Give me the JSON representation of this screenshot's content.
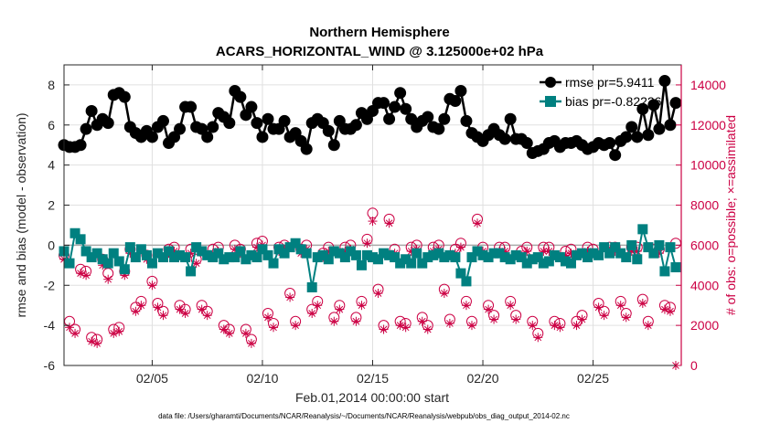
{
  "chart_data": {
    "type": "line",
    "title": "Northern Hemisphere",
    "subtitle": "ACARS_HORIZONTAL_WIND @ 3.125000e+02 hPa",
    "xlabel": "Feb.01,2014 00:00:00 start",
    "ylabel_left": "rmse and bias (model - observation)",
    "ylabel_right": "# of obs: o=possible; ×=assimilated",
    "footnote": "data file: /Users/gharamti/Documents/NCAR/Reanalysis/~/Documents/NCAR/Reanalysis/webpub/obs_diag_output_2014-02.nc",
    "xlim": [
      1.0,
      29.0
    ],
    "ylim_left": [
      -6,
      9
    ],
    "ylim_right": [
      0,
      15000
    ],
    "x_ticks": [
      5,
      10,
      15,
      20,
      25
    ],
    "x_tick_labels": [
      "02/05",
      "02/10",
      "02/15",
      "02/20",
      "02/25"
    ],
    "y_left_ticks": [
      -6,
      -4,
      -2,
      0,
      2,
      4,
      6,
      8
    ],
    "y_left_tick_labels": [
      "-6",
      "-4",
      "-2",
      "0",
      "2",
      "4",
      "6",
      "8"
    ],
    "y_right_ticks": [
      0,
      2000,
      4000,
      6000,
      8000,
      10000,
      12000,
      14000
    ],
    "y_right_tick_labels": [
      "0",
      "2000",
      "4000",
      "6000",
      "8000",
      "10000",
      "12000",
      "14000"
    ],
    "legend": {
      "position": "top-right",
      "entries": [
        "rmse pr=5.9411",
        "bias pr=-0.82226"
      ]
    },
    "colors": {
      "rmse": "#000000",
      "bias": "#008080",
      "obs": "#cc0044",
      "zero_line": "#aaaaaa",
      "grid": "#e0e0e0"
    },
    "series": [
      {
        "name": "rmse",
        "axis": "left",
        "marker": "circle",
        "x": [
          1.0,
          1.25,
          1.5,
          1.75,
          2.0,
          2.25,
          2.5,
          2.75,
          3.0,
          3.25,
          3.5,
          3.75,
          4.0,
          4.25,
          4.5,
          4.75,
          5.0,
          5.25,
          5.5,
          5.75,
          6.0,
          6.25,
          6.5,
          6.75,
          7.0,
          7.25,
          7.5,
          7.75,
          8.0,
          8.25,
          8.5,
          8.75,
          9.0,
          9.25,
          9.5,
          9.75,
          10.0,
          10.25,
          10.5,
          10.75,
          11.0,
          11.25,
          11.5,
          11.75,
          12.0,
          12.25,
          12.5,
          12.75,
          13.0,
          13.25,
          13.5,
          13.75,
          14.0,
          14.25,
          14.5,
          14.75,
          15.0,
          15.25,
          15.5,
          15.75,
          16.0,
          16.25,
          16.5,
          16.75,
          17.0,
          17.25,
          17.5,
          17.75,
          18.0,
          18.25,
          18.5,
          18.75,
          19.0,
          19.25,
          19.5,
          19.75,
          20.0,
          20.25,
          20.5,
          20.75,
          21.0,
          21.25,
          21.5,
          21.75,
          22.0,
          22.25,
          22.5,
          22.75,
          23.0,
          23.25,
          23.5,
          23.75,
          24.0,
          24.25,
          24.5,
          24.75,
          25.0,
          25.25,
          25.5,
          25.75,
          26.0,
          26.25,
          26.5,
          26.75,
          27.0,
          27.25,
          27.5,
          27.75,
          28.0,
          28.25,
          28.5,
          28.75
        ],
        "values": [
          5.0,
          4.9,
          4.9,
          5.0,
          5.8,
          6.7,
          6.0,
          6.3,
          6.1,
          7.5,
          7.6,
          7.4,
          5.9,
          5.6,
          5.4,
          5.7,
          5.4,
          5.9,
          6.2,
          5.1,
          5.4,
          5.8,
          6.9,
          6.9,
          5.9,
          5.8,
          5.4,
          5.9,
          6.6,
          6.4,
          6.1,
          7.7,
          7.4,
          6.5,
          6.9,
          6.1,
          5.4,
          6.3,
          5.8,
          5.8,
          6.2,
          5.4,
          5.6,
          5.2,
          4.8,
          6.1,
          6.3,
          6.1,
          5.7,
          5.0,
          6.2,
          5.8,
          5.8,
          6.0,
          6.6,
          6.3,
          6.7,
          7.1,
          7.1,
          6.3,
          6.9,
          7.6,
          6.8,
          6.3,
          5.9,
          6.2,
          6.4,
          5.9,
          5.8,
          6.3,
          7.3,
          7.2,
          7.7,
          6.2,
          5.6,
          5.4,
          5.2,
          5.5,
          5.8,
          5.5,
          5.3,
          6.3,
          5.3,
          5.3,
          5.1,
          4.6,
          4.7,
          4.8,
          5.1,
          5.2,
          4.9,
          5.1,
          5.1,
          5.2,
          5.0,
          4.8,
          4.9,
          5.1,
          5.0,
          5.1,
          4.5,
          5.2,
          5.4,
          5.9,
          5.4,
          6.8,
          5.5,
          7.0,
          5.8,
          8.2,
          6.0,
          7.1
        ]
      },
      {
        "name": "bias",
        "axis": "left",
        "marker": "square",
        "x": [
          1.0,
          1.25,
          1.5,
          1.75,
          2.0,
          2.25,
          2.5,
          2.75,
          3.0,
          3.25,
          3.5,
          3.75,
          4.0,
          4.25,
          4.5,
          4.75,
          5.0,
          5.25,
          5.5,
          5.75,
          6.0,
          6.25,
          6.5,
          6.75,
          7.0,
          7.25,
          7.5,
          7.75,
          8.0,
          8.25,
          8.5,
          8.75,
          9.0,
          9.25,
          9.5,
          9.75,
          10.0,
          10.25,
          10.5,
          10.75,
          11.0,
          11.25,
          11.5,
          11.75,
          12.0,
          12.25,
          12.5,
          12.75,
          13.0,
          13.25,
          13.5,
          13.75,
          14.0,
          14.25,
          14.5,
          14.75,
          15.0,
          15.25,
          15.5,
          15.75,
          16.0,
          16.25,
          16.5,
          16.75,
          17.0,
          17.25,
          17.5,
          17.75,
          18.0,
          18.25,
          18.5,
          18.75,
          19.0,
          19.25,
          19.5,
          19.75,
          20.0,
          20.25,
          20.5,
          20.75,
          21.0,
          21.25,
          21.5,
          21.75,
          22.0,
          22.25,
          22.5,
          22.75,
          23.0,
          23.25,
          23.5,
          23.75,
          24.0,
          24.25,
          24.5,
          24.75,
          25.0,
          25.25,
          25.5,
          25.75,
          26.0,
          26.25,
          26.5,
          26.75,
          27.0,
          27.25,
          27.5,
          27.75,
          28.0,
          28.25,
          28.5,
          28.75
        ],
        "values": [
          -0.3,
          -0.9,
          0.6,
          0.3,
          -0.3,
          -0.6,
          -0.4,
          -0.7,
          -0.9,
          -0.4,
          -0.8,
          -1.2,
          -0.1,
          -0.6,
          -0.2,
          -0.5,
          -0.9,
          -0.4,
          -0.6,
          -0.3,
          -0.6,
          -0.5,
          -0.6,
          -1.3,
          -0.1,
          -0.3,
          -0.5,
          -0.6,
          -0.4,
          -0.7,
          -0.6,
          -0.6,
          -0.3,
          -0.7,
          -0.5,
          -0.6,
          -0.2,
          -0.5,
          -0.9,
          -0.2,
          -0.4,
          -0.1,
          0.1,
          -0.2,
          -0.4,
          -2.1,
          -0.6,
          -0.5,
          -0.7,
          -0.3,
          -0.4,
          -0.6,
          -0.3,
          -0.5,
          -1.0,
          -0.5,
          -0.6,
          -0.7,
          -0.4,
          -0.5,
          -0.6,
          -0.9,
          -0.7,
          -0.9,
          -0.4,
          -0.9,
          -0.6,
          -0.5,
          -0.4,
          -0.6,
          -0.5,
          -0.6,
          -1.4,
          -1.8,
          -0.6,
          -0.3,
          -0.5,
          -0.6,
          -0.4,
          -0.4,
          -0.6,
          -0.7,
          -0.5,
          -0.6,
          -0.9,
          -0.7,
          -0.6,
          -0.9,
          -0.8,
          -0.5,
          -0.6,
          -0.8,
          -0.9,
          -0.5,
          -0.4,
          -0.6,
          -0.4,
          -0.5,
          -0.1,
          -0.4,
          -0.1,
          -0.4,
          -0.6,
          0.0,
          -0.7,
          0.8,
          -0.1,
          -0.4,
          0.0,
          -1.3,
          -0.1,
          -1.1
        ]
      },
      {
        "name": "obs possible",
        "axis": "right",
        "marker": "open-circle",
        "x": [
          1.0,
          1.25,
          1.5,
          1.75,
          2.0,
          2.25,
          2.5,
          2.75,
          3.0,
          3.25,
          3.5,
          3.75,
          4.0,
          4.25,
          4.5,
          4.75,
          5.0,
          5.25,
          5.5,
          5.75,
          6.0,
          6.25,
          6.5,
          6.75,
          7.0,
          7.25,
          7.5,
          7.75,
          8.0,
          8.25,
          8.5,
          8.75,
          9.0,
          9.25,
          9.5,
          9.75,
          10.0,
          10.25,
          10.5,
          10.75,
          11.0,
          11.25,
          11.5,
          11.75,
          12.0,
          12.25,
          12.5,
          12.75,
          13.0,
          13.25,
          13.5,
          13.75,
          14.0,
          14.25,
          14.5,
          14.75,
          15.0,
          15.25,
          15.5,
          15.75,
          16.0,
          16.25,
          16.5,
          16.75,
          17.0,
          17.25,
          17.5,
          17.75,
          18.0,
          18.25,
          18.5,
          18.75,
          19.0,
          19.25,
          19.5,
          19.75,
          20.0,
          20.25,
          20.5,
          20.75,
          21.0,
          21.25,
          21.5,
          21.75,
          22.0,
          22.25,
          22.5,
          22.75,
          23.0,
          23.25,
          23.5,
          23.75,
          24.0,
          24.25,
          24.5,
          24.75,
          25.0,
          25.25,
          25.5,
          25.75,
          26.0,
          26.25,
          26.5,
          26.75,
          27.0,
          27.25,
          27.5,
          27.75,
          28.0,
          28.25,
          28.5,
          28.75
        ],
        "values": [
          5500,
          2200,
          1800,
          4800,
          4700,
          1400,
          1300,
          5300,
          4600,
          1800,
          1900,
          4700,
          5800,
          2900,
          3200,
          5500,
          4200,
          3100,
          2700,
          5800,
          5900,
          3000,
          2800,
          5800,
          5300,
          3000,
          2700,
          5800,
          5900,
          2000,
          1800,
          6000,
          5800,
          1800,
          1300,
          6100,
          6200,
          2600,
          2100,
          5900,
          6000,
          3600,
          2200,
          5800,
          6000,
          2800,
          3200,
          5600,
          5900,
          2400,
          3000,
          5900,
          6000,
          2400,
          3200,
          6300,
          7600,
          3800,
          2000,
          7300,
          5800,
          2200,
          2100,
          5900,
          6000,
          2400,
          2000,
          5900,
          6000,
          3800,
          2300,
          5800,
          6100,
          3200,
          2200,
          7300,
          5900,
          3000,
          2500,
          5900,
          5900,
          3200,
          2500,
          5700,
          5900,
          2200,
          1600,
          5900,
          5900,
          2200,
          2100,
          5700,
          5800,
          2200,
          2500,
          5900,
          5800,
          3100,
          2700,
          5900,
          5900,
          3200,
          2600,
          5900,
          5900,
          3300,
          2200,
          5800,
          5800,
          3000,
          2900,
          6100
        ]
      },
      {
        "name": "obs assimilated",
        "axis": "right",
        "marker": "asterisk",
        "x": [
          1.0,
          1.25,
          1.5,
          1.75,
          2.0,
          2.25,
          2.5,
          2.75,
          3.0,
          3.25,
          3.5,
          3.75,
          4.0,
          4.25,
          4.5,
          4.75,
          5.0,
          5.25,
          5.5,
          5.75,
          6.0,
          6.25,
          6.5,
          6.75,
          7.0,
          7.25,
          7.5,
          7.75,
          8.0,
          8.25,
          8.5,
          8.75,
          9.0,
          9.25,
          9.5,
          9.75,
          10.0,
          10.25,
          10.5,
          10.75,
          11.0,
          11.25,
          11.5,
          11.75,
          12.0,
          12.25,
          12.5,
          12.75,
          13.0,
          13.25,
          13.5,
          13.75,
          14.0,
          14.25,
          14.5,
          14.75,
          15.0,
          15.25,
          15.5,
          15.75,
          16.0,
          16.25,
          16.5,
          16.75,
          17.0,
          17.25,
          17.5,
          17.75,
          18.0,
          18.25,
          18.5,
          18.75,
          19.0,
          19.25,
          19.5,
          19.75,
          20.0,
          20.25,
          20.5,
          20.75,
          21.0,
          21.25,
          21.5,
          21.75,
          22.0,
          22.25,
          22.5,
          22.75,
          23.0,
          23.25,
          23.5,
          23.75,
          24.0,
          24.25,
          24.5,
          24.75,
          25.0,
          25.25,
          25.5,
          25.75,
          26.0,
          26.25,
          26.5,
          26.75,
          27.0,
          27.25,
          27.5,
          27.75,
          28.0,
          28.25,
          28.5,
          28.75
        ],
        "values": [
          5300,
          1900,
          1600,
          4600,
          4500,
          1200,
          1100,
          5000,
          4300,
          1600,
          1700,
          4500,
          5600,
          2700,
          3000,
          5300,
          4000,
          2900,
          2500,
          5600,
          5700,
          2800,
          2600,
          5600,
          5100,
          2800,
          2500,
          5600,
          5700,
          1800,
          1600,
          5800,
          5600,
          1600,
          1100,
          5900,
          6000,
          2400,
          1900,
          5700,
          5800,
          3400,
          2000,
          5600,
          5800,
          2600,
          3000,
          5400,
          5700,
          2200,
          2800,
          5700,
          5800,
          2200,
          3000,
          6100,
          7200,
          3600,
          1800,
          7100,
          5600,
          2000,
          1900,
          5700,
          5800,
          2200,
          1800,
          5700,
          5800,
          3600,
          2100,
          5600,
          5900,
          3000,
          2000,
          7100,
          5700,
          2800,
          2300,
          5700,
          5700,
          3000,
          2300,
          5500,
          5700,
          2000,
          1400,
          5700,
          5700,
          2000,
          1900,
          5500,
          5600,
          2000,
          2300,
          5700,
          5600,
          2900,
          2500,
          5700,
          5700,
          3000,
          2400,
          5700,
          5700,
          3100,
          2000,
          5600,
          5600,
          2800,
          2700,
          0
        ]
      }
    ]
  }
}
